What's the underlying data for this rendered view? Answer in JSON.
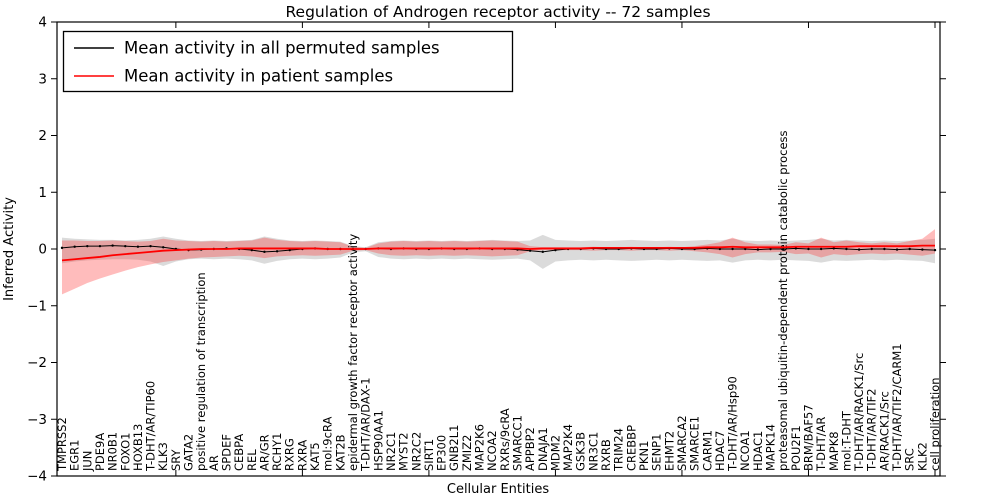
{
  "chart_data": {
    "type": "line",
    "title": "Regulation of Androgen receptor activity -- 72 samples",
    "xlabel": "Cellular Entities",
    "ylabel": "Inferred Activity",
    "ylim": [
      -4,
      4
    ],
    "ytick_values": [
      4,
      3,
      2,
      1,
      0,
      -1,
      -2,
      -3,
      -4
    ],
    "ytick_labels": [
      "4",
      "3",
      "2",
      "1",
      "0",
      "−1",
      "−2",
      "−3",
      "−4"
    ],
    "top_tick_indices": [
      9,
      19,
      29,
      39,
      49,
      59,
      69
    ],
    "grid": false,
    "legend_position": "upper left",
    "categories": [
      "TMPRSS2",
      "EGR1",
      "JUN",
      "PDE9A",
      "NR0B1",
      "FOXO1",
      "HOXB13",
      "T-DHT/AR/TIP60",
      "KLK3",
      "SRY",
      "GATA2",
      "positive regulation of transcription",
      "AR",
      "SPDEF",
      "CEBPA",
      "REL",
      "AR/GR",
      "RCHY1",
      "RXRG",
      "RXRA",
      "KAT5",
      "mol:9cRA",
      "KAT2B",
      "epidermal growth factor receptor activity",
      "T-DHT/AR/DAX-1",
      "HSP90AA1",
      "NR2C1",
      "MYST2",
      "NR2C2",
      "SIRT1",
      "EP300",
      "GNB2L1",
      "ZMIZ2",
      "MAP2K6",
      "NCOA2",
      "RXRs/9cRA",
      "SMARCC1",
      "APPBP2",
      "DNAJA1",
      "MDM2",
      "MAP2K4",
      "GSK3B",
      "NR3C1",
      "RXRB",
      "TRIM24",
      "CREBBP",
      "PKN1",
      "SENP1",
      "EHMT2",
      "SMARCA2",
      "SMARCE1",
      "CARM1",
      "HDAC7",
      "T-DHT/AR/Hsp90",
      "NCOA1",
      "HDAC1",
      "MAPK14",
      "proteasomal ubiquitin-dependent protein catabolic process",
      "POU2F1",
      "BRM/BAF57",
      "T-DHT/AR",
      "MAPK8",
      "mol:T-DHT",
      "T-DHT/AR/RACK1/Src",
      "T-DHT/AR/TIF2",
      "AR/RACK1/Src",
      "T-DHT/AR/TIF2/CARM1",
      "SRC",
      "KLK2",
      "cell proliferation"
    ],
    "series": [
      {
        "name": "Mean activity in all permuted samples",
        "color": "#000000",
        "band_color": "#999999",
        "band_opacity": 0.35,
        "marker": "dot",
        "values": [
          0.02,
          0.04,
          0.05,
          0.05,
          0.06,
          0.05,
          0.04,
          0.05,
          0.03,
          0.0,
          -0.02,
          -0.01,
          0.0,
          0.01,
          0.0,
          -0.02,
          -0.05,
          -0.04,
          -0.02,
          0.0,
          0.01,
          0.0,
          0.0,
          0.0,
          0.0,
          0.01,
          0.0,
          0.01,
          0.0,
          0.0,
          0.01,
          0.0,
          0.0,
          0.01,
          0.0,
          0.0,
          -0.01,
          -0.03,
          -0.05,
          -0.02,
          0.0,
          0.0,
          0.01,
          0.0,
          0.0,
          0.01,
          0.0,
          0.0,
          0.01,
          0.0,
          0.0,
          0.01,
          0.0,
          0.0,
          0.0,
          -0.01,
          0.0,
          0.0,
          0.01,
          0.0,
          0.0,
          0.01,
          0.0,
          -0.01,
          0.0,
          0.0,
          -0.01,
          0.0,
          -0.01,
          -0.02
        ],
        "band_upper": [
          0.2,
          0.18,
          0.17,
          0.16,
          0.16,
          0.15,
          0.16,
          0.18,
          0.22,
          0.18,
          0.15,
          0.14,
          0.15,
          0.14,
          0.15,
          0.16,
          0.22,
          0.18,
          0.15,
          0.14,
          0.15,
          0.14,
          0.13,
          0.05,
          0.03,
          0.12,
          0.14,
          0.15,
          0.14,
          0.15,
          0.14,
          0.15,
          0.14,
          0.15,
          0.16,
          0.15,
          0.14,
          0.15,
          0.25,
          0.16,
          0.15,
          0.14,
          0.15,
          0.14,
          0.15,
          0.16,
          0.15,
          0.14,
          0.15,
          0.14,
          0.15,
          0.16,
          0.15,
          0.18,
          0.15,
          0.14,
          0.15,
          0.14,
          0.15,
          0.16,
          0.18,
          0.15,
          0.16,
          0.15,
          0.14,
          0.15,
          0.14,
          0.15,
          0.16,
          0.18
        ],
        "band_lower": [
          -0.25,
          -0.22,
          -0.2,
          -0.19,
          -0.18,
          -0.18,
          -0.19,
          -0.22,
          -0.3,
          -0.22,
          -0.18,
          -0.17,
          -0.18,
          -0.17,
          -0.18,
          -0.2,
          -0.26,
          -0.21,
          -0.18,
          -0.17,
          -0.18,
          -0.17,
          -0.15,
          -0.06,
          -0.04,
          -0.14,
          -0.17,
          -0.18,
          -0.17,
          -0.18,
          -0.17,
          -0.18,
          -0.17,
          -0.18,
          -0.19,
          -0.18,
          -0.17,
          -0.2,
          -0.35,
          -0.22,
          -0.2,
          -0.19,
          -0.2,
          -0.19,
          -0.2,
          -0.21,
          -0.2,
          -0.19,
          -0.2,
          -0.19,
          -0.2,
          -0.21,
          -0.2,
          -0.24,
          -0.2,
          -0.19,
          -0.2,
          -0.19,
          -0.2,
          -0.21,
          -0.24,
          -0.2,
          -0.21,
          -0.2,
          -0.19,
          -0.2,
          -0.19,
          -0.2,
          -0.21,
          -0.25
        ]
      },
      {
        "name": "Mean activity in patient samples",
        "color": "#ff0000",
        "band_color": "#ff2222",
        "band_opacity": 0.3,
        "marker": "none",
        "values": [
          -0.2,
          -0.18,
          -0.16,
          -0.14,
          -0.11,
          -0.09,
          -0.07,
          -0.05,
          -0.03,
          -0.02,
          -0.01,
          0.0,
          0.0,
          0.0,
          0.01,
          0.01,
          0.01,
          0.01,
          0.01,
          0.01,
          0.01,
          0.0,
          0.0,
          0.0,
          0.0,
          0.01,
          0.01,
          0.01,
          0.01,
          0.01,
          0.01,
          0.01,
          0.01,
          0.01,
          0.01,
          0.01,
          0.01,
          0.0,
          0.01,
          0.01,
          0.01,
          0.01,
          0.02,
          0.02,
          0.02,
          0.02,
          0.02,
          0.02,
          0.02,
          0.02,
          0.02,
          0.03,
          0.03,
          0.04,
          0.03,
          0.03,
          0.03,
          0.03,
          0.04,
          0.04,
          0.04,
          0.04,
          0.04,
          0.05,
          0.05,
          0.05,
          0.05,
          0.05,
          0.06,
          0.06
        ],
        "band_upper": [
          0.15,
          0.15,
          0.14,
          0.14,
          0.15,
          0.14,
          0.13,
          0.14,
          0.18,
          0.15,
          0.14,
          0.13,
          0.14,
          0.13,
          0.14,
          0.15,
          0.2,
          0.16,
          0.14,
          0.13,
          0.14,
          0.13,
          0.12,
          0.04,
          0.02,
          0.1,
          0.13,
          0.14,
          0.13,
          0.14,
          0.13,
          0.14,
          0.13,
          0.14,
          0.15,
          0.14,
          0.13,
          0.05,
          0.03,
          0.03,
          0.03,
          0.03,
          0.04,
          0.03,
          0.03,
          0.04,
          0.03,
          0.03,
          0.04,
          0.03,
          0.05,
          0.08,
          0.12,
          0.2,
          0.12,
          0.08,
          0.08,
          0.07,
          0.12,
          0.1,
          0.2,
          0.12,
          0.15,
          0.12,
          0.1,
          0.12,
          0.1,
          0.14,
          0.18,
          0.35
        ],
        "band_lower": [
          -0.8,
          -0.7,
          -0.6,
          -0.52,
          -0.45,
          -0.38,
          -0.32,
          -0.27,
          -0.23,
          -0.2,
          -0.17,
          -0.15,
          -0.14,
          -0.13,
          -0.12,
          -0.13,
          -0.16,
          -0.13,
          -0.12,
          -0.11,
          -0.12,
          -0.11,
          -0.1,
          -0.03,
          -0.02,
          -0.08,
          -0.11,
          -0.12,
          -0.11,
          -0.12,
          -0.11,
          -0.12,
          -0.11,
          -0.12,
          -0.13,
          -0.12,
          -0.11,
          -0.04,
          -0.02,
          -0.02,
          -0.02,
          -0.02,
          -0.03,
          -0.02,
          -0.02,
          -0.03,
          -0.02,
          -0.02,
          -0.03,
          -0.02,
          -0.04,
          -0.06,
          -0.09,
          -0.15,
          -0.09,
          -0.06,
          -0.06,
          -0.05,
          -0.09,
          -0.08,
          -0.15,
          -0.09,
          -0.11,
          -0.09,
          -0.08,
          -0.09,
          -0.08,
          -0.1,
          -0.12,
          -0.08
        ]
      }
    ]
  }
}
